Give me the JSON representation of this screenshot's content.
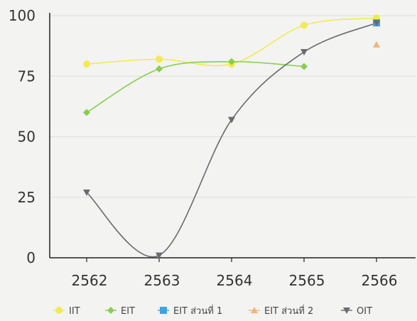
{
  "chart_data": {
    "type": "line",
    "title": "",
    "xlabel": "",
    "ylabel": "",
    "categories": [
      "2562",
      "2563",
      "2564",
      "2565",
      "2566"
    ],
    "ylim": [
      0,
      100
    ],
    "yticks": [
      0,
      25,
      50,
      75,
      100
    ],
    "grid": "horizontal",
    "legend_position": "bottom",
    "series": [
      {
        "name": "IIT",
        "color": "#f2ea55",
        "marker": "circle",
        "smooth": true,
        "values": [
          80,
          82,
          80,
          96,
          99
        ]
      },
      {
        "name": "EIT",
        "color": "#86cf4e",
        "marker": "diamond",
        "smooth": true,
        "values": [
          60,
          78,
          81,
          79,
          null
        ]
      },
      {
        "name": "EIT ส่วนที่ 1",
        "color": "#3fa3df",
        "marker": "square",
        "smooth": false,
        "values": [
          null,
          null,
          null,
          null,
          97
        ]
      },
      {
        "name": "EIT ส่วนที่ 2",
        "color": "#f2b47a",
        "marker": "triangle",
        "smooth": false,
        "values": [
          null,
          null,
          null,
          null,
          88
        ]
      },
      {
        "name": "OIT",
        "color": "#6a6a72",
        "marker": "triangle-down",
        "smooth": true,
        "values": [
          27,
          1,
          57,
          85,
          97
        ]
      }
    ]
  }
}
